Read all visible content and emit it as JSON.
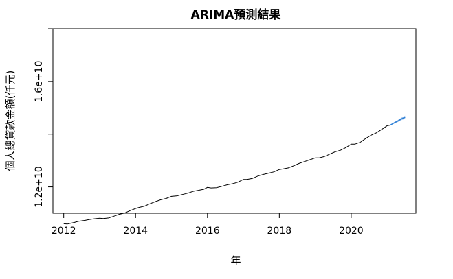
{
  "chart_data": {
    "type": "line",
    "title": "ARIMA預測結果",
    "xlabel": "年",
    "ylabel": "個人總貸款金額(仟元)",
    "xlim": [
      2011.7,
      2021.8
    ],
    "ylim": [
      11000000000.0,
      18000000000.0
    ],
    "x_ticks": [
      2012,
      2014,
      2016,
      2018,
      2020
    ],
    "y_ticks": [
      10000000000.0,
      12000000000.0,
      14000000000.0,
      16000000000.0,
      18000000000.0
    ],
    "y_tick_labels": [
      "",
      "1.2e+10",
      "",
      "1.6e+10",
      ""
    ],
    "grid": false,
    "series": [
      {
        "color": "#000000",
        "points": [
          [
            2012.0,
            10600000000.0
          ],
          [
            2012.1,
            10590000000.0
          ],
          [
            2012.2,
            10620000000.0
          ],
          [
            2012.3,
            10650000000.0
          ],
          [
            2012.4,
            10690000000.0
          ],
          [
            2012.5,
            10710000000.0
          ],
          [
            2012.6,
            10730000000.0
          ],
          [
            2012.7,
            10760000000.0
          ],
          [
            2012.85,
            10790000000.0
          ],
          [
            2013.0,
            10810000000.0
          ],
          [
            2013.1,
            10800000000.0
          ],
          [
            2013.25,
            10820000000.0
          ],
          [
            2013.4,
            10890000000.0
          ],
          [
            2013.55,
            10960000000.0
          ],
          [
            2013.7,
            11010000000.0
          ],
          [
            2013.85,
            11100000000.0
          ],
          [
            2014.0,
            11180000000.0
          ],
          [
            2014.1,
            11220000000.0
          ],
          [
            2014.25,
            11270000000.0
          ],
          [
            2014.4,
            11360000000.0
          ],
          [
            2014.55,
            11440000000.0
          ],
          [
            2014.7,
            11510000000.0
          ],
          [
            2014.85,
            11560000000.0
          ],
          [
            2015.0,
            11640000000.0
          ],
          [
            2015.15,
            11660000000.0
          ],
          [
            2015.3,
            11710000000.0
          ],
          [
            2015.45,
            11760000000.0
          ],
          [
            2015.6,
            11830000000.0
          ],
          [
            2015.75,
            11870000000.0
          ],
          [
            2015.9,
            11910000000.0
          ],
          [
            2016.0,
            11980000000.0
          ],
          [
            2016.1,
            11960000000.0
          ],
          [
            2016.25,
            11970000000.0
          ],
          [
            2016.4,
            12020000000.0
          ],
          [
            2016.55,
            12080000000.0
          ],
          [
            2016.7,
            12120000000.0
          ],
          [
            2016.85,
            12180000000.0
          ],
          [
            2017.0,
            12280000000.0
          ],
          [
            2017.1,
            12280000000.0
          ],
          [
            2017.25,
            12320000000.0
          ],
          [
            2017.4,
            12410000000.0
          ],
          [
            2017.55,
            12470000000.0
          ],
          [
            2017.7,
            12520000000.0
          ],
          [
            2017.85,
            12570000000.0
          ],
          [
            2018.0,
            12660000000.0
          ],
          [
            2018.1,
            12680000000.0
          ],
          [
            2018.25,
            12720000000.0
          ],
          [
            2018.4,
            12800000000.0
          ],
          [
            2018.55,
            12890000000.0
          ],
          [
            2018.7,
            12960000000.0
          ],
          [
            2018.85,
            13030000000.0
          ],
          [
            2019.0,
            13100000000.0
          ],
          [
            2019.1,
            13100000000.0
          ],
          [
            2019.25,
            13150000000.0
          ],
          [
            2019.4,
            13240000000.0
          ],
          [
            2019.55,
            13330000000.0
          ],
          [
            2019.7,
            13390000000.0
          ],
          [
            2019.85,
            13490000000.0
          ],
          [
            2020.0,
            13620000000.0
          ],
          [
            2020.1,
            13620000000.0
          ],
          [
            2020.25,
            13690000000.0
          ],
          [
            2020.4,
            13830000000.0
          ],
          [
            2020.55,
            13960000000.0
          ],
          [
            2020.7,
            14050000000.0
          ],
          [
            2020.85,
            14180000000.0
          ],
          [
            2021.0,
            14320000000.0
          ],
          [
            2021.08,
            14340000000.0
          ]
        ]
      },
      {
        "color": "#2b7fd6",
        "band_color": "#a9c8ec",
        "points": [
          [
            2021.08,
            14340000000.0
          ],
          [
            2021.2,
            14430000000.0
          ],
          [
            2021.3,
            14500000000.0
          ],
          [
            2021.4,
            14580000000.0
          ],
          [
            2021.5,
            14640000000.0
          ]
        ],
        "lower": [
          14340000000.0,
          14400000000.0,
          14460000000.0,
          14530000000.0,
          14580000000.0
        ],
        "upper": [
          14340000000.0,
          14460000000.0,
          14540000000.0,
          14630000000.0,
          14700000000.0
        ]
      }
    ]
  }
}
